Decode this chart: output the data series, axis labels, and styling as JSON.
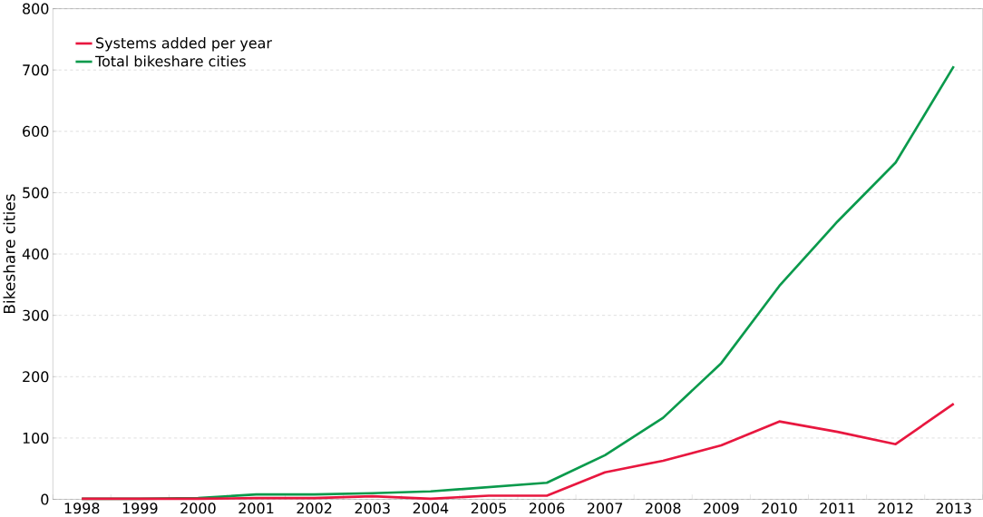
{
  "chart_data": {
    "type": "line",
    "ylabel": "Bikeshare cities",
    "categories": [
      "1998",
      "1999",
      "2000",
      "2001",
      "2002",
      "2003",
      "2004",
      "2005",
      "2006",
      "2007",
      "2008",
      "2009",
      "2010",
      "2011",
      "2012",
      "2013"
    ],
    "series": [
      {
        "name": "Systems added per year",
        "color": "#e8173f",
        "values": [
          1,
          1,
          1,
          2,
          2,
          5,
          1,
          6,
          6,
          44,
          63,
          88,
          127,
          110,
          90,
          156
        ]
      },
      {
        "name": "Total bikeshare cities",
        "color": "#0a9a4c",
        "values": [
          1,
          1,
          2,
          8,
          8,
          10,
          13,
          20,
          27,
          72,
          133,
          222,
          348,
          453,
          549,
          706
        ]
      }
    ],
    "ylim": [
      0,
      800
    ],
    "yticks": [
      0,
      100,
      200,
      300,
      400,
      500,
      600,
      700,
      800
    ],
    "grid": "y",
    "legend": "top left",
    "marker": "none",
    "line_style": "solid"
  }
}
